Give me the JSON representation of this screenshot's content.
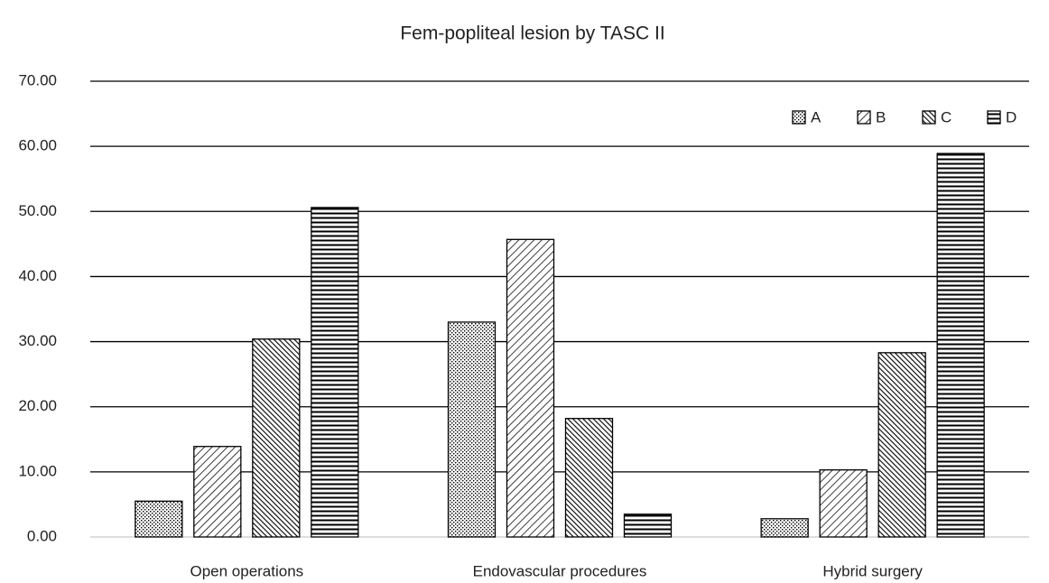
{
  "chart_data": {
    "type": "bar",
    "title": "Fem-popliteal lesion by TASC II",
    "categories": [
      "Open operations",
      "Endovascular procedures",
      "Hybrid surgery"
    ],
    "series": [
      {
        "name": "A",
        "color": "#000000",
        "pattern": "dots",
        "values": [
          5.5,
          33.0,
          2.8
        ]
      },
      {
        "name": "B",
        "color": "#000000",
        "pattern": "back-diagonal",
        "values": [
          13.9,
          45.7,
          10.3
        ]
      },
      {
        "name": "C",
        "color": "#000000",
        "pattern": "forward-diagonal",
        "values": [
          30.4,
          18.2,
          28.3
        ]
      },
      {
        "name": "D",
        "color": "#000000",
        "pattern": "horizontal",
        "values": [
          50.6,
          3.5,
          58.9
        ]
      }
    ],
    "ylim": [
      0,
      70
    ],
    "yticks": [
      {
        "value": 0,
        "label": "0.00"
      },
      {
        "value": 10,
        "label": "10.00"
      },
      {
        "value": 20,
        "label": "20.00"
      },
      {
        "value": 30,
        "label": "30.00"
      },
      {
        "value": 40,
        "label": "40.00"
      },
      {
        "value": 50,
        "label": "50.00"
      },
      {
        "value": 60,
        "label": "60.00"
      },
      {
        "value": 70,
        "label": "70.00"
      }
    ],
    "grid": true,
    "legend": "top-right"
  }
}
